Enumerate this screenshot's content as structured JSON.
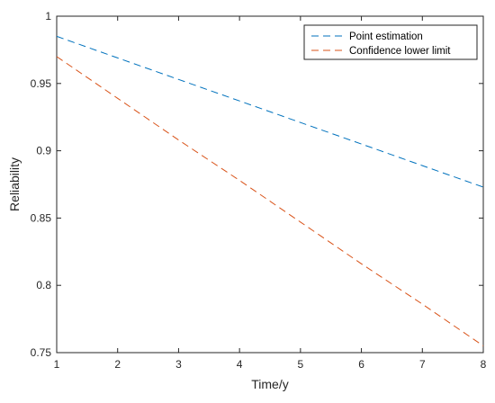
{
  "chart_data": {
    "type": "line",
    "title": "",
    "xlabel": "Time/y",
    "ylabel": "Reliability",
    "xlim": [
      1,
      8
    ],
    "ylim": [
      0.75,
      1
    ],
    "xticks": [
      1,
      2,
      3,
      4,
      5,
      6,
      7,
      8
    ],
    "xtick_labels": [
      "1",
      "2",
      "3",
      "4",
      "5",
      "6",
      "7",
      "8"
    ],
    "yticks": [
      0.75,
      0.8,
      0.85,
      0.9,
      0.95,
      1
    ],
    "ytick_labels": [
      "0.75",
      "0.8",
      "0.85",
      "0.9",
      "0.95",
      "1"
    ],
    "grid": false,
    "legend_position": "top-right",
    "series": [
      {
        "name": "Point estimation",
        "color": "#0072BD",
        "style": "dashed",
        "x": [
          1,
          2,
          3,
          4,
          5,
          6,
          7,
          8
        ],
        "y": [
          0.985,
          0.969,
          0.953,
          0.937,
          0.921,
          0.905,
          0.889,
          0.873
        ]
      },
      {
        "name": "Confidence lower limit",
        "color": "#D95319",
        "style": "dashed",
        "x": [
          1,
          2,
          3,
          4,
          5,
          6,
          7,
          8
        ],
        "y": [
          0.97,
          0.939,
          0.908,
          0.878,
          0.847,
          0.816,
          0.786,
          0.755
        ]
      }
    ]
  }
}
